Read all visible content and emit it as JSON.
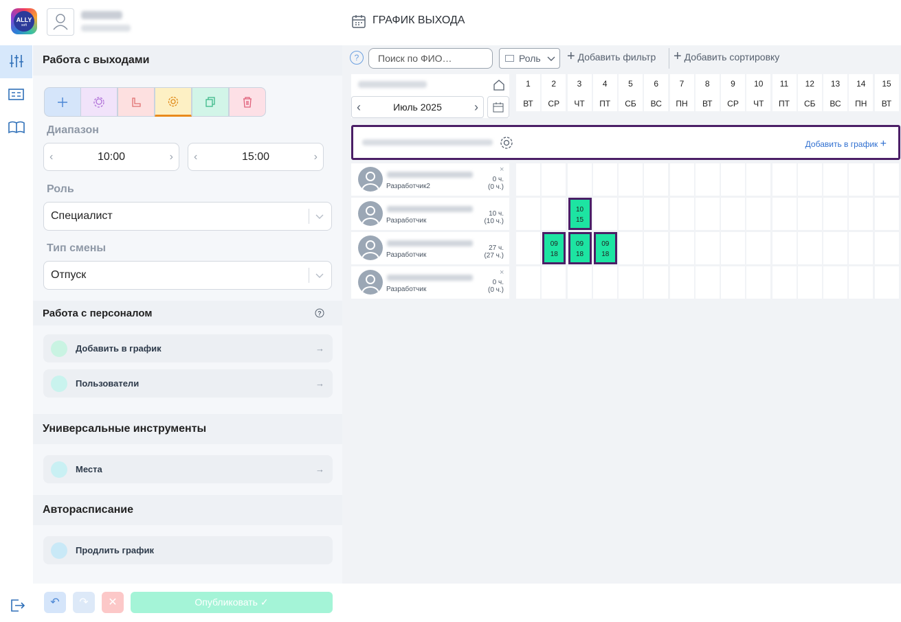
{
  "header": {
    "logo": "ALLY",
    "logo_sub": "soft",
    "title": "ГРАФИК ВЫХОДА"
  },
  "sidebar": {
    "shifts_section": {
      "title": "Работа с выходами",
      "range_label": "Диапазон",
      "range_start": "10:00",
      "range_end": "15:00",
      "role_label": "Роль",
      "role_value": "Специалист",
      "shift_type_label": "Тип смены",
      "shift_type_value": "Отпуск"
    },
    "staff_section": {
      "title": "Работа с персоналом",
      "items": [
        "Добавить в график",
        "Пользователи"
      ]
    },
    "tools_section": {
      "title": "Универсальные инструменты",
      "items": [
        "Места"
      ]
    },
    "auto_section": {
      "title": "Авторасписание",
      "items": [
        "Продлить график"
      ]
    },
    "publish": "Опубликовать"
  },
  "toolbar": {
    "search_placeholder": "Поиск по ФИО…",
    "role_filter": "Роль",
    "add_filter": "Добавить фильтр",
    "add_sort": "Добавить сортировку"
  },
  "calendar": {
    "month": "Июль 2025",
    "days": [
      {
        "day": 1,
        "weekday": "ВТ"
      },
      {
        "day": 2,
        "weekday": "СР"
      },
      {
        "day": 3,
        "weekday": "ЧТ"
      },
      {
        "day": 4,
        "weekday": "ПТ"
      },
      {
        "day": 5,
        "weekday": "СБ"
      },
      {
        "day": 6,
        "weekday": "ВС"
      },
      {
        "day": 7,
        "weekday": "ПН"
      },
      {
        "day": 8,
        "weekday": "ВТ"
      },
      {
        "day": 9,
        "weekday": "СР"
      },
      {
        "day": 10,
        "weekday": "ЧТ"
      },
      {
        "day": 11,
        "weekday": "ПТ"
      },
      {
        "day": 12,
        "weekday": "СБ"
      },
      {
        "day": 13,
        "weekday": "ВС"
      },
      {
        "day": 14,
        "weekday": "ПН"
      },
      {
        "day": 15,
        "weekday": "ВТ"
      }
    ],
    "group_action": "Добавить в график",
    "employees": [
      {
        "role": "Разработчик2",
        "hours": "0 ч.",
        "planned": "(0 ч.)",
        "removable": true,
        "shifts": []
      },
      {
        "role": "Разработчик",
        "hours": "10 ч.",
        "planned": "(10 ч.)",
        "removable": false,
        "shifts": [
          {
            "day": 3,
            "start": "10",
            "end": "15"
          }
        ]
      },
      {
        "role": "Разработчик",
        "hours": "27 ч.",
        "planned": "(27 ч.)",
        "removable": false,
        "shifts": [
          {
            "day": 2,
            "start": "09",
            "end": "18"
          },
          {
            "day": 3,
            "start": "09",
            "end": "18"
          },
          {
            "day": 4,
            "start": "09",
            "end": "18"
          }
        ]
      },
      {
        "role": "Разработчик",
        "hours": "0 ч.",
        "planned": "(0 ч.)",
        "removable": true,
        "shifts": []
      }
    ]
  }
}
